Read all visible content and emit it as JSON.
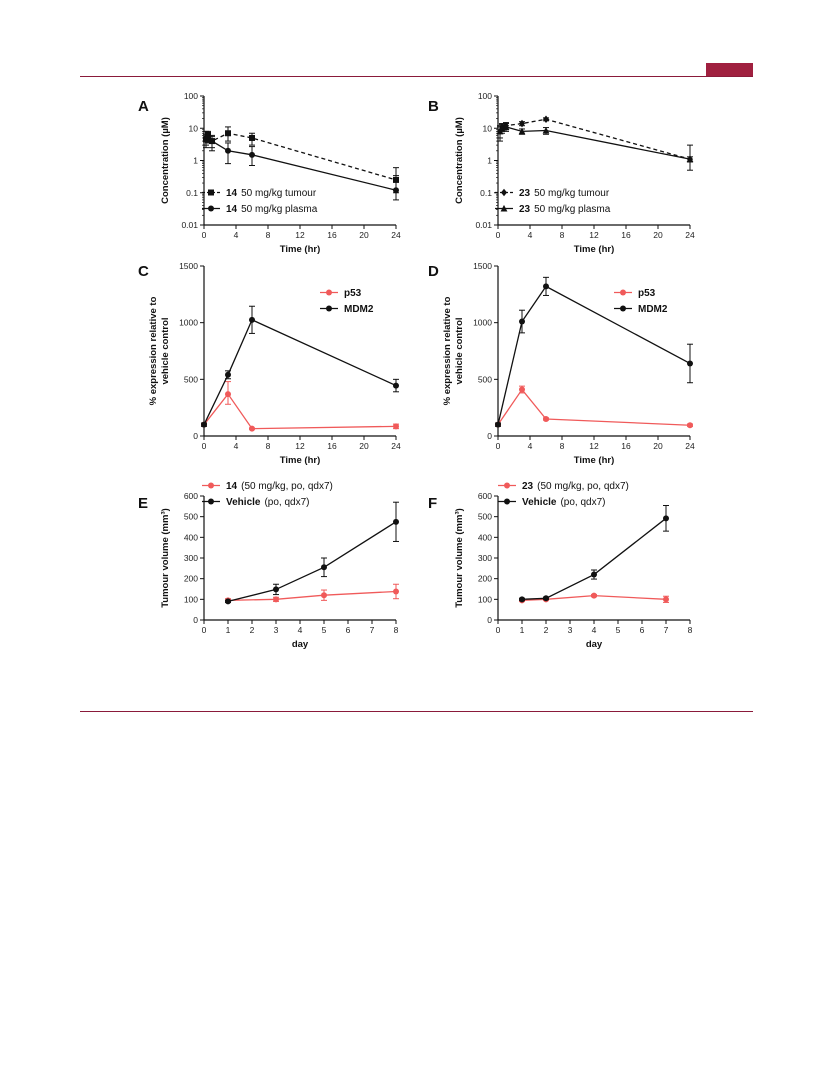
{
  "colors": {
    "accent": "#a0203f",
    "red": "#f05a5a",
    "black": "#111111"
  },
  "chart_data": [
    {
      "panel": "A",
      "type": "line",
      "yscale": "log",
      "xlabel": "Time (hr)",
      "ylabel": "Concentration (µM)",
      "xlim": [
        0,
        24
      ],
      "ylim": [
        0.01,
        100
      ],
      "xticks": [
        "0",
        "4",
        "8",
        "12",
        "16",
        "20",
        "24"
      ],
      "yticks": [
        "0.01",
        "0.1",
        "1",
        "10",
        "100"
      ],
      "legend": [
        {
          "num": "14",
          "text": "50 mg/kg tumour"
        },
        {
          "num": "14",
          "text": "50 mg/kg plasma"
        }
      ],
      "series": [
        {
          "name": "14 50 mg/kg tumour",
          "marker": "square",
          "dashed": true,
          "color": "#111111",
          "x": [
            0.25,
            0.5,
            1,
            3,
            6,
            24
          ],
          "y": [
            4.5,
            6,
            4,
            7,
            5,
            0.25
          ],
          "err_lo": [
            1.5,
            2,
            1.5,
            3,
            2,
            0.15
          ],
          "err_hi": [
            2,
            2,
            1.5,
            4,
            2,
            0.35
          ]
        },
        {
          "name": "14 50 mg/kg plasma",
          "marker": "circle",
          "dashed": false,
          "color": "#111111",
          "x": [
            0.25,
            0.5,
            1,
            3,
            6,
            24
          ],
          "y": [
            5,
            5.5,
            4,
            2,
            1.5,
            0.12
          ],
          "err_lo": [
            2.5,
            2,
            2,
            1.2,
            0.8,
            0.06
          ],
          "err_hi": [
            3,
            2,
            2,
            1.5,
            1.2,
            0.22
          ]
        }
      ]
    },
    {
      "panel": "B",
      "type": "line",
      "yscale": "log",
      "xlabel": "Time (hr)",
      "ylabel": "Concentration (µM)",
      "xlim": [
        0,
        24
      ],
      "ylim": [
        0.01,
        100
      ],
      "xticks": [
        "0",
        "4",
        "8",
        "12",
        "16",
        "20",
        "24"
      ],
      "yticks": [
        "0.01",
        "0.1",
        "1",
        "10",
        "100"
      ],
      "legend": [
        {
          "num": "23",
          "text": "50 mg/kg tumour"
        },
        {
          "num": "23",
          "text": "50 mg/kg plasma"
        }
      ],
      "series": [
        {
          "name": "23 50 mg/kg tumour",
          "marker": "diamond",
          "dashed": true,
          "color": "#111111",
          "x": [
            0.25,
            0.5,
            1,
            3,
            6,
            24
          ],
          "y": [
            8,
            11,
            12,
            14,
            19,
            1.1
          ],
          "err_lo": [
            3,
            3,
            3,
            2,
            2,
            0.2
          ],
          "err_hi": [
            3,
            3,
            3,
            2,
            2,
            0.2
          ]
        },
        {
          "name": "23 50 mg/kg plasma",
          "marker": "triangle",
          "dashed": false,
          "color": "#111111",
          "x": [
            0.25,
            0.5,
            1,
            3,
            6,
            24
          ],
          "y": [
            8,
            10,
            11,
            8,
            8.5,
            1.1
          ],
          "err_lo": [
            4,
            3,
            3,
            1.5,
            2,
            0.6
          ],
          "err_hi": [
            4,
            3,
            3,
            1.5,
            2,
            1.9
          ]
        }
      ]
    },
    {
      "panel": "C",
      "type": "line",
      "xlabel": "Time (hr)",
      "ylabel": [
        "% expression relative to",
        "vehicle control"
      ],
      "xlim": [
        0,
        24
      ],
      "ylim": [
        0,
        1500
      ],
      "xticks": [
        "0",
        "4",
        "8",
        "12",
        "16",
        "20",
        "24"
      ],
      "yticks": [
        "0",
        "500",
        "1000",
        "1500"
      ],
      "legend": [
        {
          "num": "p53",
          "text": ""
        },
        {
          "num": "MDM2",
          "text": ""
        }
      ],
      "series": [
        {
          "name": "p53",
          "marker": "circle",
          "dashed": false,
          "color": "#f05a5a",
          "x": [
            0,
            3,
            6,
            24
          ],
          "y": [
            100,
            370,
            65,
            85
          ],
          "err_lo": [
            10,
            90,
            5,
            20
          ],
          "err_hi": [
            10,
            110,
            5,
            20
          ]
        },
        {
          "name": "MDM2",
          "marker": "circle",
          "dashed": false,
          "color": "#111111",
          "x": [
            0,
            3,
            6,
            24
          ],
          "y": [
            100,
            540,
            1025,
            445
          ],
          "err_lo": [
            15,
            35,
            120,
            55
          ],
          "err_hi": [
            15,
            35,
            120,
            55
          ]
        }
      ]
    },
    {
      "panel": "D",
      "type": "line",
      "xlabel": "Time (hr)",
      "ylabel": [
        "% expression relative to",
        "vehicle control"
      ],
      "xlim": [
        0,
        24
      ],
      "ylim": [
        0,
        1500
      ],
      "xticks": [
        "0",
        "4",
        "8",
        "12",
        "16",
        "20",
        "24"
      ],
      "yticks": [
        "0",
        "500",
        "1000",
        "1500"
      ],
      "legend": [
        {
          "num": "p53",
          "text": ""
        },
        {
          "num": "MDM2",
          "text": ""
        }
      ],
      "series": [
        {
          "name": "p53",
          "marker": "circle",
          "dashed": false,
          "color": "#f05a5a",
          "x": [
            0,
            3,
            6,
            24
          ],
          "y": [
            100,
            410,
            150,
            95
          ],
          "err_lo": [
            10,
            30,
            10,
            10
          ],
          "err_hi": [
            10,
            30,
            10,
            10
          ]
        },
        {
          "name": "MDM2",
          "marker": "circle",
          "dashed": false,
          "color": "#111111",
          "x": [
            0,
            3,
            6,
            24
          ],
          "y": [
            100,
            1010,
            1320,
            640
          ],
          "err_lo": [
            15,
            100,
            80,
            170
          ],
          "err_hi": [
            15,
            100,
            80,
            170
          ]
        }
      ]
    },
    {
      "panel": "E",
      "type": "line",
      "xlabel": "day",
      "ylabel": "Tumour volume (mm³)",
      "xlim": [
        0,
        8
      ],
      "ylim": [
        0,
        600
      ],
      "xticks": [
        "0",
        "1",
        "2",
        "3",
        "4",
        "5",
        "6",
        "7",
        "8"
      ],
      "yticks": [
        "0",
        "100",
        "200",
        "300",
        "400",
        "500",
        "600"
      ],
      "legend": [
        {
          "num": "14",
          "text": "(50 mg/kg, po, qdx7)"
        },
        {
          "num": "Vehicle",
          "text": "(po, qdx7)"
        }
      ],
      "series": [
        {
          "name": "14 (50 mg/kg, po, qdx7)",
          "marker": "circle",
          "dashed": false,
          "color": "#f05a5a",
          "x": [
            1,
            3,
            5,
            8
          ],
          "y": [
            95,
            100,
            120,
            138
          ],
          "err_lo": [
            8,
            10,
            25,
            35
          ],
          "err_hi": [
            8,
            10,
            25,
            35
          ]
        },
        {
          "name": "Vehicle (po, qdx7)",
          "marker": "circle",
          "dashed": false,
          "color": "#111111",
          "x": [
            1,
            3,
            5,
            8
          ],
          "y": [
            90,
            148,
            255,
            475
          ],
          "err_lo": [
            5,
            25,
            45,
            95
          ],
          "err_hi": [
            5,
            25,
            45,
            95
          ]
        }
      ]
    },
    {
      "panel": "F",
      "type": "line",
      "xlabel": "day",
      "ylabel": "Tumour volume (mm³)",
      "xlim": [
        0,
        8
      ],
      "ylim": [
        0,
        600
      ],
      "xticks": [
        "0",
        "1",
        "2",
        "3",
        "4",
        "5",
        "6",
        "7",
        "8"
      ],
      "yticks": [
        "0",
        "100",
        "200",
        "300",
        "400",
        "500",
        "600"
      ],
      "legend": [
        {
          "num": "23",
          "text": "(50 mg/kg, po, qdx7)"
        },
        {
          "num": "Vehicle",
          "text": "(po, qdx7)"
        }
      ],
      "series": [
        {
          "name": "23 (50 mg/kg, po, qdx7)",
          "marker": "circle",
          "dashed": false,
          "color": "#f05a5a",
          "x": [
            1,
            2,
            4,
            7
          ],
          "y": [
            95,
            100,
            118,
            100
          ],
          "err_lo": [
            5,
            5,
            5,
            15
          ],
          "err_hi": [
            5,
            5,
            5,
            15
          ]
        },
        {
          "name": "Vehicle (po, qdx7)",
          "marker": "circle",
          "dashed": false,
          "color": "#111111",
          "x": [
            1,
            2,
            4,
            7
          ],
          "y": [
            100,
            105,
            220,
            492
          ],
          "err_lo": [
            5,
            5,
            22,
            62
          ],
          "err_hi": [
            5,
            5,
            22,
            62
          ]
        }
      ]
    }
  ]
}
